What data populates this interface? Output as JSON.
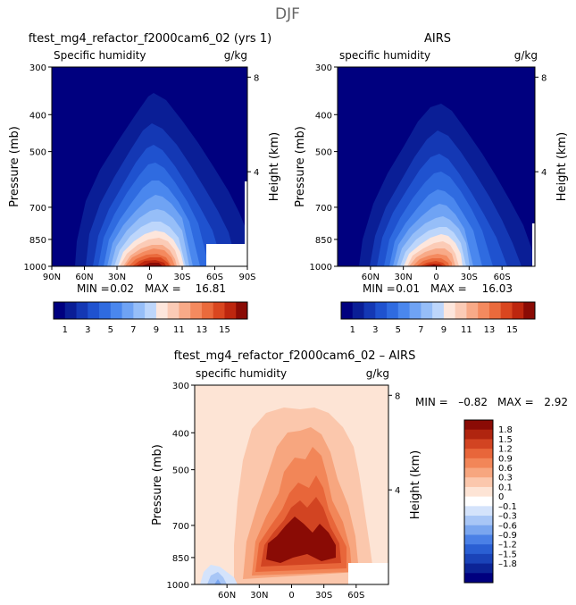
{
  "season": "DJF",
  "panels": [
    {
      "id": "model",
      "title": "ftest_mg4_refactor_f2000cam6_02 (yrs 1)",
      "variable": "Specific humidity",
      "units": "g/kg",
      "ylabel": "Pressure (mb)",
      "ylabel_right": "Height (km)",
      "pressure_ticks": [
        "300",
        "400",
        "500",
        "700",
        "850",
        "1000"
      ],
      "height_ticks": [
        "8",
        "4"
      ],
      "lat_ticks": [
        "90N",
        "60N",
        "30N",
        "0",
        "30S",
        "60S",
        "90S"
      ],
      "min_label": "MIN =",
      "min_value": "0.02",
      "max_label": "MAX =",
      "max_value": "16.81"
    },
    {
      "id": "obs",
      "title": "AIRS",
      "variable": "specific humidity",
      "units": "g/kg",
      "ylabel": "Pressure (mb)",
      "ylabel_right": "Height (km)",
      "pressure_ticks": [
        "300",
        "400",
        "500",
        "700",
        "850",
        "1000"
      ],
      "height_ticks": [
        "8",
        "4"
      ],
      "lat_ticks": [
        "60N",
        "30N",
        "0",
        "30S",
        "60S"
      ],
      "min_label": "MIN =",
      "min_value": "0.01",
      "max_label": "MAX =",
      "max_value": "16.03"
    },
    {
      "id": "diff",
      "title": "ftest_mg4_refactor_f2000cam6_02 – AIRS",
      "variable": "specific humidity",
      "units": "g/kg",
      "ylabel": "Pressure (mb)",
      "ylabel_right": "Height (km)",
      "pressure_ticks": [
        "300",
        "400",
        "500",
        "700",
        "850",
        "1000"
      ],
      "height_ticks": [
        "8",
        "4"
      ],
      "lat_ticks": [
        "60N",
        "30N",
        "0",
        "30S",
        "60S"
      ],
      "min_label": "MIN =",
      "min_value": "–0.82",
      "max_label": "MAX =",
      "max_value": "2.92"
    }
  ],
  "colorbar_abs": {
    "colors": [
      "#00007f",
      "#0a1e96",
      "#1438b4",
      "#1f52cf",
      "#2f6be0",
      "#4a87ee",
      "#6fa3f4",
      "#96bef8",
      "#bdd6fb",
      "#fde6dc",
      "#fbcbb6",
      "#f8aa88",
      "#f48a5f",
      "#ea6a3c",
      "#d9461f",
      "#bd260e",
      "#8a0b05"
    ],
    "labels": [
      "1",
      "3",
      "5",
      "7",
      "9",
      "11",
      "13",
      "15"
    ]
  },
  "colorbar_diff": {
    "colors": [
      "#00007f",
      "#0c2496",
      "#1a43b8",
      "#2a5fd3",
      "#4a80e6",
      "#7aa6ef",
      "#a8c6f6",
      "#d4e3fb",
      "#ffffff",
      "#fde4d5",
      "#fbc7ac",
      "#f7a67f",
      "#f28658",
      "#e8663a",
      "#d24422",
      "#b0250f",
      "#8a0b05"
    ],
    "labels": [
      "1.8",
      "1.5",
      "1.2",
      "0.9",
      "0.6",
      "0.3",
      "0.1",
      "0",
      "–0.1",
      "–0.3",
      "–0.6",
      "–0.9",
      "–1.2",
      "–1.5",
      "–1.8"
    ]
  },
  "chart_data": [
    {
      "type": "heatmap",
      "title": "ftest_mg4_refactor_f2000cam6_02 (yrs 1)",
      "subtitle": "Specific humidity",
      "units": "g/kg",
      "ylabel": "Pressure (mb)",
      "x_ticks": [
        "90N",
        "60N",
        "30N",
        "0",
        "30S",
        "60S",
        "90S"
      ],
      "y_ticks": [
        300,
        400,
        500,
        700,
        850,
        1000
      ],
      "min": 0.02,
      "max": 16.81,
      "levels": [
        1,
        2,
        3,
        4,
        5,
        6,
        7,
        8,
        9,
        10,
        11,
        12,
        13,
        14,
        15,
        16
      ],
      "contours_lat_at_pressure": [
        {
          "level": 1,
          "points": [
            [
              1000,
              -72
            ],
            [
              900,
              -65
            ],
            [
              700,
              -48
            ],
            [
              500,
              -28
            ],
            [
              440,
              -15
            ],
            [
              430,
              0
            ],
            [
              450,
              15
            ],
            [
              550,
              30
            ],
            [
              700,
              42
            ],
            [
              900,
              55
            ],
            [
              1000,
              62
            ]
          ]
        },
        {
          "level": 3,
          "points": [
            [
              1000,
              -58
            ],
            [
              850,
              -48
            ],
            [
              700,
              -36
            ],
            [
              570,
              -20
            ],
            [
              540,
              -5
            ],
            [
              560,
              10
            ],
            [
              650,
              22
            ],
            [
              800,
              33
            ],
            [
              1000,
              42
            ]
          ]
        },
        {
          "level": 5,
          "points": [
            [
              1000,
              -48
            ],
            [
              850,
              -38
            ],
            [
              700,
              -27
            ],
            [
              620,
              -10
            ],
            [
              610,
              0
            ],
            [
              640,
              12
            ],
            [
              760,
              24
            ],
            [
              1000,
              36
            ]
          ]
        },
        {
          "level": 7,
          "points": [
            [
              1000,
              -40
            ],
            [
              850,
              -30
            ],
            [
              740,
              -15
            ],
            [
              690,
              0
            ],
            [
              720,
              12
            ],
            [
              850,
              22
            ],
            [
              1000,
              30
            ]
          ]
        },
        {
          "level": 9,
          "points": [
            [
              1000,
              -32
            ],
            [
              880,
              -22
            ],
            [
              790,
              -8
            ],
            [
              770,
              0
            ],
            [
              800,
              10
            ],
            [
              900,
              18
            ],
            [
              1000,
              24
            ]
          ]
        },
        {
          "level": 11,
          "points": [
            [
              1000,
              -26
            ],
            [
              900,
              -16
            ],
            [
              840,
              -5
            ],
            [
              830,
              0
            ],
            [
              860,
              8
            ],
            [
              1000,
              18
            ]
          ]
        },
        {
          "level": 13,
          "points": [
            [
              1000,
              -20
            ],
            [
              930,
              -12
            ],
            [
              890,
              -3
            ],
            [
              900,
              6
            ],
            [
              1000,
              14
            ]
          ]
        },
        {
          "level": 15,
          "points": [
            [
              1000,
              -14
            ],
            [
              950,
              -6
            ],
            [
              945,
              2
            ],
            [
              1000,
              10
            ]
          ]
        }
      ]
    },
    {
      "type": "heatmap",
      "title": "AIRS",
      "subtitle": "specific humidity",
      "units": "g/kg",
      "ylabel": "Pressure (mb)",
      "x_ticks": [
        "60N",
        "30N",
        "0",
        "30S",
        "60S"
      ],
      "y_ticks": [
        300,
        400,
        500,
        700,
        850,
        1000
      ],
      "min": 0.01,
      "max": 16.03,
      "levels": [
        1,
        2,
        3,
        4,
        5,
        6,
        7,
        8,
        9,
        10,
        11,
        12,
        13,
        14,
        15,
        16
      ],
      "contours_lat_at_pressure": [
        {
          "level": 1,
          "points": [
            [
              1000,
              -70
            ],
            [
              900,
              -62
            ],
            [
              700,
              -45
            ],
            [
              500,
              -22
            ],
            [
              450,
              -8
            ],
            [
              450,
              5
            ],
            [
              500,
              18
            ],
            [
              650,
              35
            ],
            [
              850,
              50
            ],
            [
              1000,
              60
            ]
          ]
        },
        {
          "level": 3,
          "points": [
            [
              1000,
              -55
            ],
            [
              850,
              -45
            ],
            [
              700,
              -32
            ],
            [
              580,
              -15
            ],
            [
              560,
              0
            ],
            [
              600,
              14
            ],
            [
              720,
              28
            ],
            [
              1000,
              40
            ]
          ]
        },
        {
          "level": 5,
          "points": [
            [
              1000,
              -45
            ],
            [
              850,
              -35
            ],
            [
              720,
              -22
            ],
            [
              650,
              -6
            ],
            [
              650,
              6
            ],
            [
              720,
              18
            ],
            [
              1000,
              32
            ]
          ]
        },
        {
          "level": 7,
          "points": [
            [
              1000,
              -36
            ],
            [
              860,
              -25
            ],
            [
              760,
              -10
            ],
            [
              740,
              2
            ],
            [
              790,
              14
            ],
            [
              1000,
              26
            ]
          ]
        },
        {
          "level": 9,
          "points": [
            [
              1000,
              -28
            ],
            [
              890,
              -18
            ],
            [
              820,
              -6
            ],
            [
              820,
              4
            ],
            [
              880,
              12
            ],
            [
              1000,
              20
            ]
          ]
        },
        {
          "level": 11,
          "points": [
            [
              1000,
              -22
            ],
            [
              910,
              -12
            ],
            [
              870,
              -2
            ],
            [
              880,
              8
            ],
            [
              1000,
              16
            ]
          ]
        },
        {
          "level": 13,
          "points": [
            [
              1000,
              -16
            ],
            [
              940,
              -8
            ],
            [
              920,
              2
            ],
            [
              1000,
              10
            ]
          ]
        },
        {
          "level": 15,
          "points": [
            [
              1000,
              -10
            ],
            [
              970,
              -4
            ],
            [
              970,
              3
            ],
            [
              1000,
              6
            ]
          ]
        }
      ]
    },
    {
      "type": "heatmap",
      "title": "ftest_mg4_refactor_f2000cam6_02 – AIRS",
      "subtitle": "specific humidity",
      "units": "g/kg",
      "ylabel": "Pressure (mb)",
      "x_ticks": [
        "60N",
        "30N",
        "0",
        "30S",
        "60S"
      ],
      "y_ticks": [
        300,
        400,
        500,
        700,
        850,
        1000
      ],
      "min": -0.82,
      "max": 2.92,
      "levels": [
        -1.8,
        -1.5,
        -1.2,
        -0.9,
        -0.6,
        -0.3,
        -0.1,
        0,
        0.1,
        0.3,
        0.6,
        0.9,
        1.2,
        1.5,
        1.8
      ],
      "contours_lat_at_pressure": [
        {
          "level": 0.1,
          "points": [
            [
              1000,
              -78
            ],
            [
              700,
              -72
            ],
            [
              500,
              -65
            ],
            [
              350,
              -45
            ],
            [
              320,
              -10
            ],
            [
              320,
              30
            ],
            [
              380,
              55
            ],
            [
              500,
              62
            ],
            [
              800,
              68
            ],
            [
              1000,
              72
            ]
          ]
        },
        {
          "level": 0.3,
          "points": [
            [
              1000,
              -65
            ],
            [
              800,
              -60
            ],
            [
              600,
              -52
            ],
            [
              450,
              -35
            ],
            [
              420,
              0
            ],
            [
              430,
              25
            ],
            [
              520,
              45
            ],
            [
              750,
              55
            ],
            [
              1000,
              60
            ]
          ]
        },
        {
          "level": 0.6,
          "points": [
            [
              960,
              -50
            ],
            [
              800,
              -45
            ],
            [
              600,
              -35
            ],
            [
              500,
              -15
            ],
            [
              480,
              10
            ],
            [
              560,
              35
            ],
            [
              800,
              45
            ],
            [
              960,
              42
            ]
          ]
        },
        {
          "level": 0.9,
          "points": [
            [
              930,
              -42
            ],
            [
              800,
              -38
            ],
            [
              680,
              -22
            ],
            [
              620,
              -8
            ],
            [
              600,
              10
            ],
            [
              680,
              28
            ],
            [
              860,
              38
            ],
            [
              930,
              30
            ]
          ]
        },
        {
          "level": 1.2,
          "points": [
            [
              900,
              -35
            ],
            [
              780,
              -28
            ],
            [
              700,
              -14
            ],
            [
              690,
              0
            ],
            [
              680,
              14
            ],
            [
              760,
              28
            ],
            [
              900,
              32
            ]
          ]
        },
        {
          "level": 1.8,
          "points": [
            [
              880,
              -25
            ],
            [
              780,
              -18
            ],
            [
              760,
              -8
            ],
            [
              800,
              0
            ],
            [
              790,
              12
            ],
            [
              820,
              22
            ],
            [
              880,
              20
            ]
          ]
        },
        {
          "level": -0.1,
          "points": [
            [
              1000,
              -85
            ],
            [
              960,
              -75
            ],
            [
              980,
              -62
            ],
            [
              1000,
              -60
            ]
          ]
        }
      ]
    }
  ]
}
